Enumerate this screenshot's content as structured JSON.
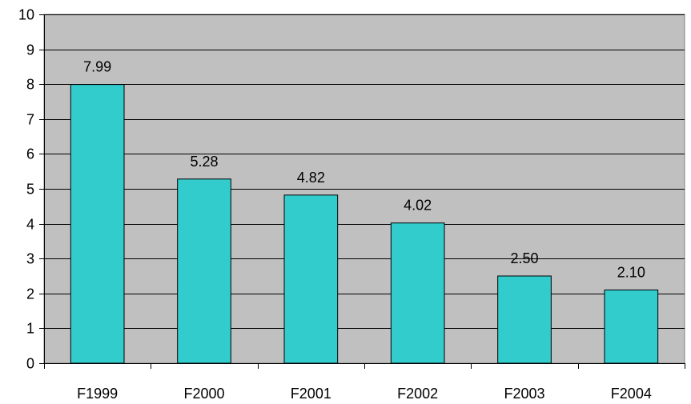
{
  "chart_data": {
    "type": "bar",
    "title": "",
    "xlabel": "",
    "ylabel": "",
    "categories": [
      "F1999",
      "F2000",
      "F2001",
      "F2002",
      "F2003",
      "F2004"
    ],
    "values": [
      7.99,
      5.28,
      4.82,
      4.02,
      2.5,
      2.1
    ],
    "data_labels": [
      "7.99",
      "5.28",
      "4.82",
      "4.02",
      "2.50",
      "2.10"
    ],
    "y_ticks": [
      "0",
      "1",
      "2",
      "3",
      "4",
      "5",
      "6",
      "7",
      "8",
      "9",
      "10"
    ],
    "ylim": [
      0,
      10
    ],
    "grid": true,
    "legend": "none",
    "colors": {
      "bar": "#33CCCC",
      "plot_background": "#C0C0C0",
      "gridline": "#000000",
      "bar_border": "#000000"
    }
  }
}
